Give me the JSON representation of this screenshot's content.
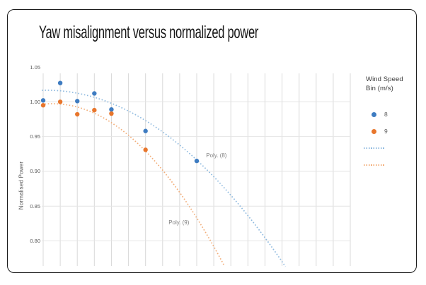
{
  "window": {
    "background": "#ffffff",
    "border_color": "#1c1c1c"
  },
  "title": "Yaw misalignment versus normalized power",
  "y_axis": {
    "title": "Normalised Power"
  },
  "legend": {
    "title_lines": [
      "Wind Speed",
      "Bin (m/s)"
    ],
    "entries": [
      {
        "label": "8",
        "marker": "dot",
        "color": "#3e7cc1"
      },
      {
        "label": "9",
        "marker": "dot",
        "color": "#e8762c"
      },
      {
        "label": "",
        "marker": "dotted-line",
        "color": "#8fbadf"
      },
      {
        "label": "",
        "marker": "dotted-line",
        "color": "#f2ae7a"
      }
    ]
  },
  "chart_data": {
    "type": "scatter",
    "title": "Yaw misalignment versus normalized power",
    "xlabel": "",
    "ylabel": "Normalised Power",
    "y_ticks": [
      1.05,
      1.0,
      0.95,
      0.9,
      0.85,
      0.8
    ],
    "y_tick_labels": [
      "1.05",
      "1.00",
      "0.95",
      "0.90",
      "0.85",
      "0.80"
    ],
    "ylim": [
      0.764,
      1.043
    ],
    "x_gridline_count": 19,
    "grid_color_vertical": "#d9d9d9",
    "grid_color_horizontal": "#e4e4e4",
    "series": [
      {
        "name": "8",
        "color": "#3e7cc1",
        "points": [
          [
            0,
            1.002
          ],
          [
            1,
            1.027
          ],
          [
            2,
            1.001
          ],
          [
            3,
            1.012
          ],
          [
            4,
            0.989
          ],
          [
            6,
            0.958
          ],
          [
            9,
            0.915
          ]
        ]
      },
      {
        "name": "9",
        "color": "#e8762c",
        "points": [
          [
            0,
            0.995
          ],
          [
            1,
            1.0
          ],
          [
            2,
            0.982
          ],
          [
            3,
            0.988
          ],
          [
            4,
            0.983
          ],
          [
            6,
            0.931
          ]
        ]
      }
    ],
    "trendlines": [
      {
        "name": "Poly. (8)",
        "color": "#8fbadf",
        "quad": [
          1.0166,
          0.00048,
          -0.0012912
        ],
        "x_range": [
          -0.08,
          14.2
        ]
      },
      {
        "name": "Poly. (9)",
        "color": "#f2ae7a",
        "quad": [
          0.99648,
          0.0026182,
          -0.0023079
        ],
        "x_range": [
          -0.08,
          10.65
        ]
      }
    ],
    "annotations": [
      {
        "text": "Poly. (8)",
        "x": 9.55,
        "y": 0.922
      },
      {
        "text": "Poly. (9)",
        "x": 7.35,
        "y": 0.826
      }
    ],
    "legend_position": "right"
  }
}
